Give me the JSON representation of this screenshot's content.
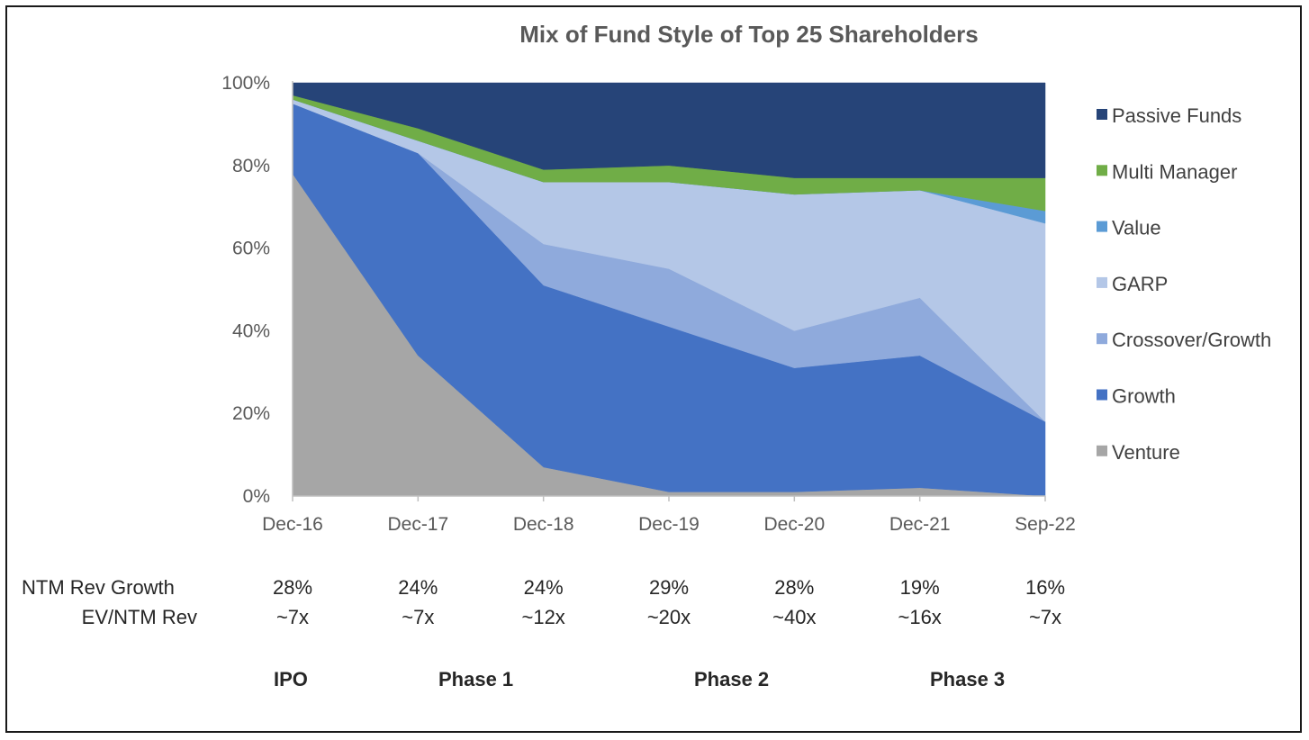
{
  "chart_data": {
    "type": "area",
    "stacked": true,
    "title": "Mix of Fund Style of Top 25 Shareholders",
    "categories": [
      "Dec-16",
      "Dec-17",
      "Dec-18",
      "Dec-19",
      "Dec-20",
      "Dec-21",
      "Sep-22"
    ],
    "ylim": [
      0,
      100
    ],
    "yticks": [
      "0%",
      "20%",
      "40%",
      "60%",
      "80%",
      "100%"
    ],
    "legend_position": "right",
    "series": [
      {
        "name": "Venture",
        "color": "#a6a6a6",
        "values": [
          78,
          34,
          7,
          1,
          1,
          2,
          0
        ]
      },
      {
        "name": "Growth",
        "color": "#4472c4",
        "values": [
          17,
          49,
          44,
          40,
          30,
          32,
          18
        ]
      },
      {
        "name": "Crossover/Growth",
        "color": "#8faadc",
        "values": [
          0,
          0,
          10,
          14,
          9,
          14,
          0
        ]
      },
      {
        "name": "GARP",
        "color": "#b4c7e7",
        "values": [
          1,
          3,
          15,
          21,
          33,
          26,
          48
        ]
      },
      {
        "name": "Value",
        "color": "#5b9bd5",
        "values": [
          0,
          0,
          0,
          0,
          0,
          0,
          3
        ]
      },
      {
        "name": "Multi Manager",
        "color": "#70ad47",
        "values": [
          1,
          3,
          3,
          4,
          4,
          3,
          8
        ]
      },
      {
        "name": "Passive Funds",
        "color": "#264478",
        "values": [
          3,
          11,
          21,
          20,
          23,
          23,
          23
        ]
      }
    ]
  },
  "metrics": {
    "ntm_rev_growth": {
      "label": "NTM Rev Growth",
      "values": [
        "28%",
        "24%",
        "24%",
        "29%",
        "28%",
        "19%",
        "16%"
      ]
    },
    "ev_ntm_rev": {
      "label": "EV/NTM Rev",
      "values": [
        "~7x",
        "~7x",
        "~12x",
        "~20x",
        "~40x",
        "~16x",
        "~7x"
      ]
    }
  },
  "phases": [
    "IPO",
    "Phase 1",
    "Phase 2",
    "Phase 3"
  ]
}
